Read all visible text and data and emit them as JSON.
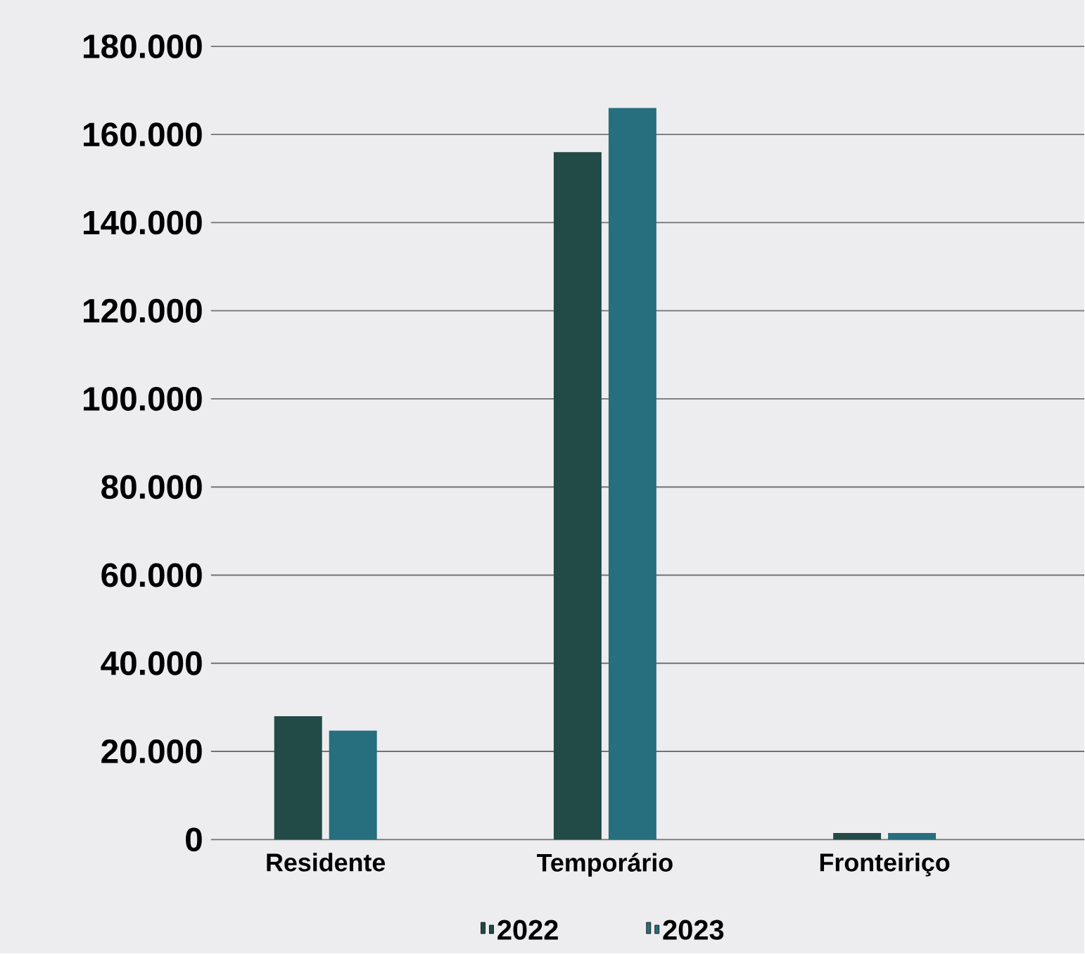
{
  "chart_data": {
    "type": "bar",
    "categories": [
      "Residente",
      "Temporário",
      "Fronteiriço"
    ],
    "series": [
      {
        "name": "2022",
        "color": "#224a47",
        "values": [
          28000,
          156000,
          1500
        ]
      },
      {
        "name": "2023",
        "color": "#276e7e",
        "values": [
          24700,
          166000,
          1500
        ]
      }
    ],
    "ylim": [
      0,
      180000
    ],
    "yticks": [
      0,
      {
        "value": 20000,
        "label": "20.000"
      },
      {
        "value": 40000,
        "label": "40.000"
      },
      {
        "value": 60000,
        "label": "60.000"
      },
      {
        "value": 80000,
        "label": "80.000"
      },
      {
        "value": 100000,
        "label": "100.000"
      },
      {
        "value": 120000,
        "label": "120.000"
      },
      {
        "value": 140000,
        "label": "140.000"
      },
      {
        "value": 160000,
        "label": "160.000"
      },
      {
        "value": 180000,
        "label": "180.000"
      }
    ],
    "grid": "y",
    "legend": "bottom"
  }
}
